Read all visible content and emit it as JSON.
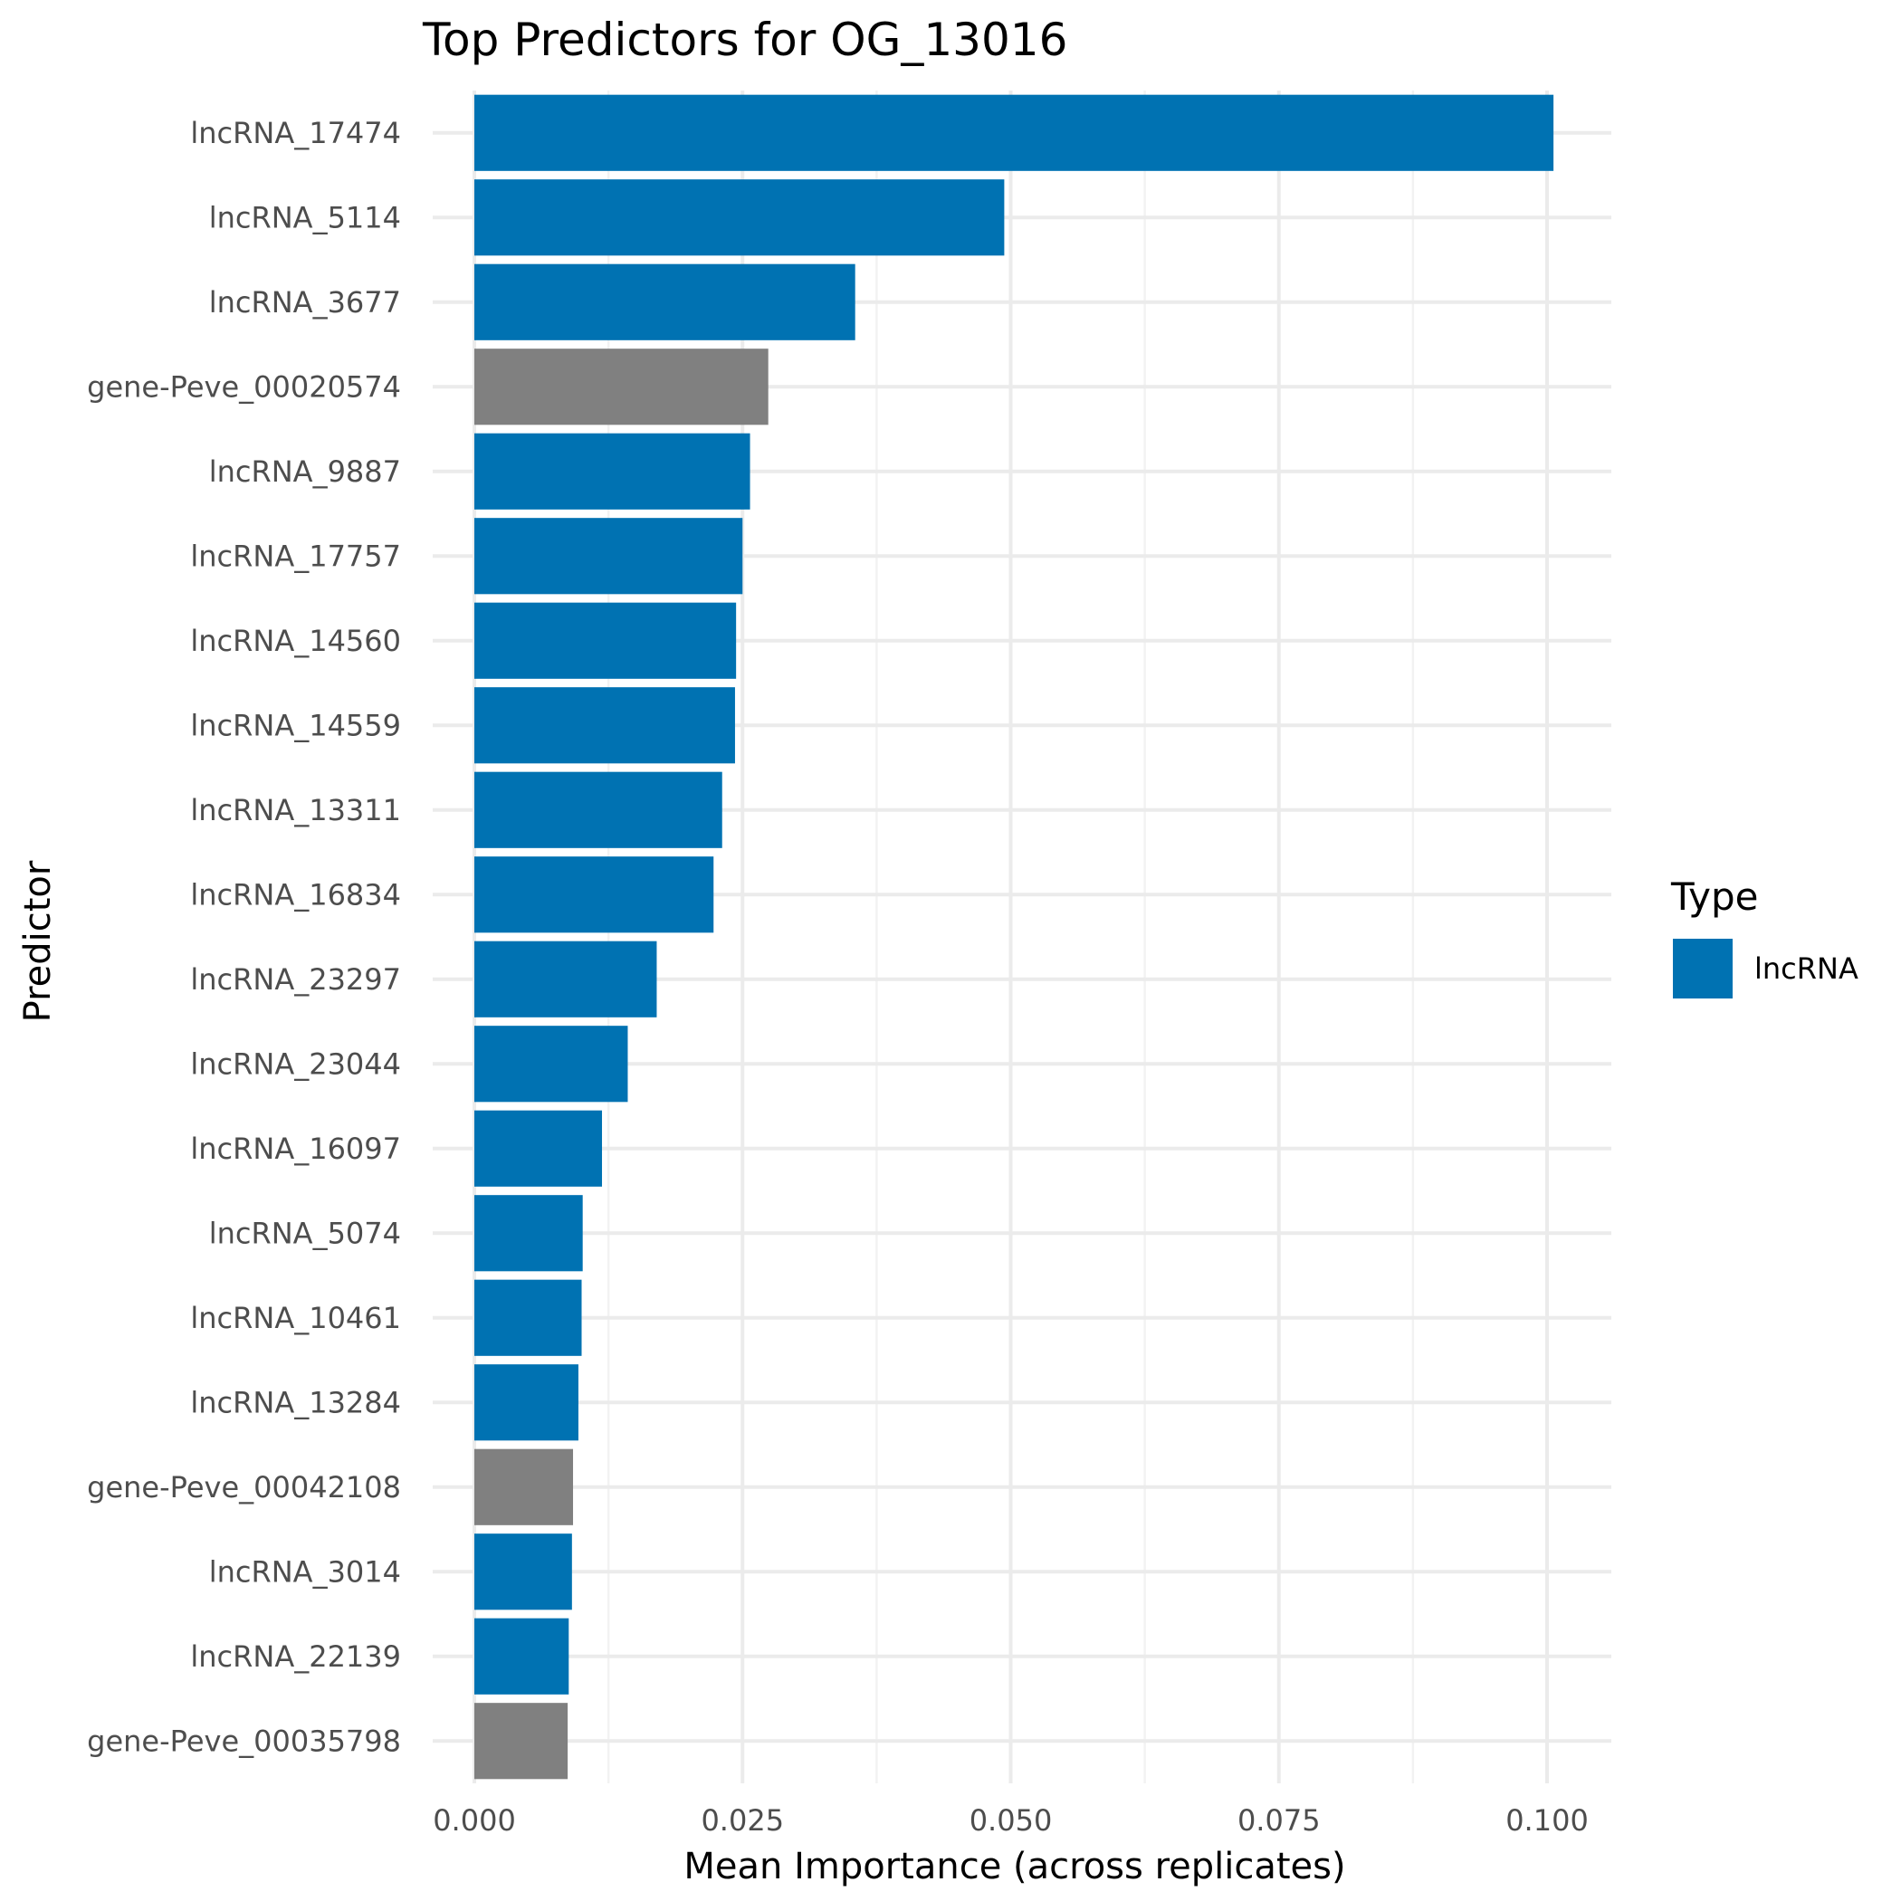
{
  "chart_data": {
    "type": "bar",
    "orientation": "horizontal",
    "title": "Top Predictors for OG_13016",
    "xlabel": "Mean Importance (across replicates)",
    "ylabel": "Predictor",
    "xlim": [
      0,
      0.1
    ],
    "x_ticks": [
      "0.000",
      "0.025",
      "0.050",
      "0.075",
      "0.100"
    ],
    "grid": true,
    "legend": {
      "title": "Type",
      "placement": "right",
      "entries": [
        {
          "label": "lncRNA",
          "color": "#0072B2"
        }
      ]
    },
    "colors": {
      "lncRNA": "#0072B2",
      "gene": "#808080"
    },
    "categories": [
      "lncRNA_17474",
      "lncRNA_5114",
      "lncRNA_3677",
      "gene-Peve_00020574",
      "lncRNA_9887",
      "lncRNA_17757",
      "lncRNA_14560",
      "lncRNA_14559",
      "lncRNA_13311",
      "lncRNA_16834",
      "lncRNA_23297",
      "lncRNA_23044",
      "lncRNA_16097",
      "lncRNA_5074",
      "lncRNA_10461",
      "lncRNA_13284",
      "gene-Peve_00042108",
      "lncRNA_3014",
      "lncRNA_22139",
      "gene-Peve_00035798"
    ],
    "values": [
      0.1006,
      0.0494,
      0.0355,
      0.0274,
      0.0257,
      0.025,
      0.0244,
      0.0243,
      0.0231,
      0.0223,
      0.017,
      0.0143,
      0.0119,
      0.0101,
      0.01,
      0.0097,
      0.0092,
      0.0091,
      0.0088,
      0.0087
    ],
    "types": [
      "lncRNA",
      "lncRNA",
      "lncRNA",
      "gene",
      "lncRNA",
      "lncRNA",
      "lncRNA",
      "lncRNA",
      "lncRNA",
      "lncRNA",
      "lncRNA",
      "lncRNA",
      "lncRNA",
      "lncRNA",
      "lncRNA",
      "lncRNA",
      "gene",
      "lncRNA",
      "lncRNA",
      "gene"
    ]
  }
}
